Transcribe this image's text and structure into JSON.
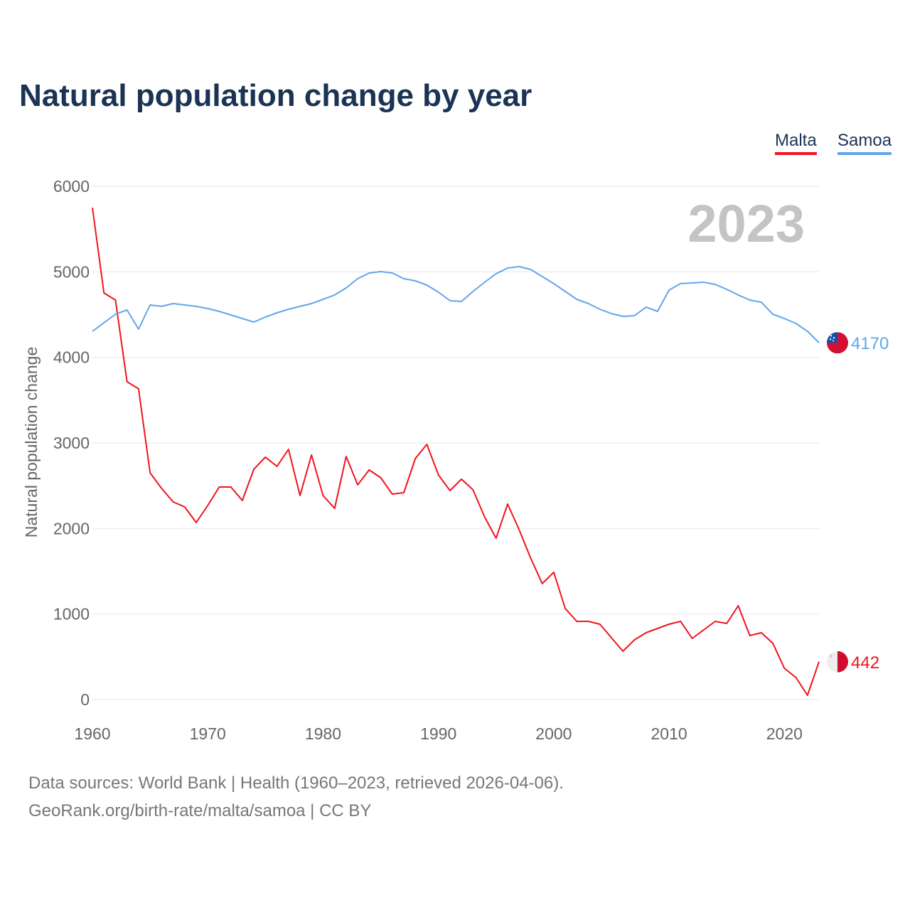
{
  "chart_data": {
    "type": "line",
    "title": "Natural population change by year",
    "xlabel": "",
    "ylabel": "Natural population change",
    "xlim": [
      1960,
      2023
    ],
    "ylim": [
      0,
      6000
    ],
    "yticks": [
      0,
      1000,
      2000,
      3000,
      4000,
      5000,
      6000
    ],
    "xticks": [
      1960,
      1970,
      1980,
      1990,
      2000,
      2010,
      2020
    ],
    "grid": true,
    "legend_position": "top-right",
    "year_label": "2023",
    "start_year": 1960,
    "series": [
      {
        "name": "Malta",
        "color": "#f0141e",
        "end_label": "442",
        "flag": "malta-flag",
        "values": [
          5750,
          4753,
          4670,
          3715,
          3632,
          2651,
          2468,
          2310,
          2252,
          2069,
          2269,
          2485,
          2485,
          2327,
          2693,
          2834,
          2726,
          2925,
          2385,
          2859,
          2385,
          2235,
          2842,
          2510,
          2684,
          2593,
          2402,
          2418,
          2817,
          2983,
          2626,
          2443,
          2576,
          2452,
          2136,
          1886,
          2285,
          1986,
          1654,
          1355,
          1488,
          1064,
          914,
          914,
          881,
          723,
          565,
          698,
          781,
          831,
          881,
          914,
          715,
          814,
          914,
          889,
          1097,
          748,
          781,
          657,
          366,
          258,
          50,
          442
        ]
      },
      {
        "name": "Samoa",
        "color": "#62a6ea",
        "end_label": "4170",
        "flag": "samoa-flag",
        "values": [
          4305,
          4405,
          4504,
          4554,
          4330,
          4612,
          4596,
          4629,
          4612,
          4596,
          4571,
          4537,
          4496,
          4454,
          4413,
          4471,
          4521,
          4562,
          4596,
          4629,
          4679,
          4729,
          4812,
          4920,
          4986,
          5003,
          4986,
          4920,
          4895,
          4845,
          4762,
          4662,
          4654,
          4770,
          4878,
          4978,
          5044,
          5061,
          5028,
          4945,
          4862,
          4770,
          4679,
          4629,
          4562,
          4512,
          4479,
          4487,
          4587,
          4537,
          4787,
          4862,
          4870,
          4878,
          4853,
          4795,
          4729,
          4670,
          4645,
          4504,
          4454,
          4396,
          4305,
          4170
        ]
      }
    ]
  },
  "footer": {
    "line1": "Data sources: World Bank | Health (1960–2023, retrieved 2026-04-06).",
    "line2": "GeoRank.org/birth-rate/malta/samoa | CC BY"
  }
}
